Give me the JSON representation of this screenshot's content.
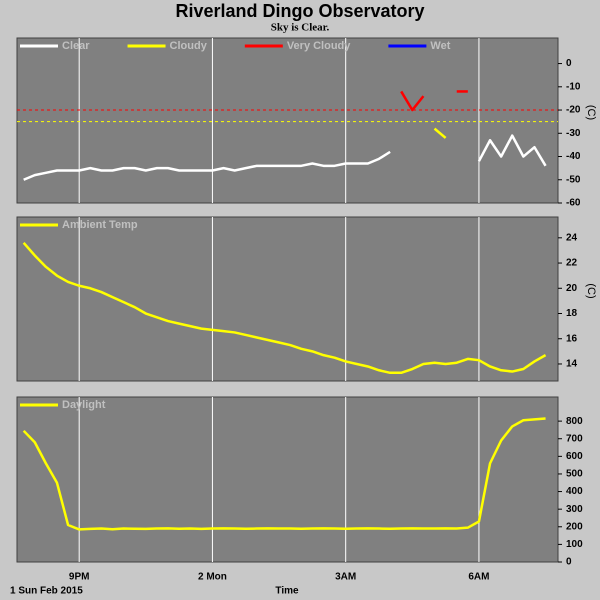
{
  "title": "Riverland Dingo Observatory",
  "subtitle": "Sky is Clear.",
  "x_axis": {
    "label": "Time",
    "date": "1 Sun Feb 2015",
    "x": [
      19.75,
      20,
      20.25,
      20.5,
      20.75,
      21,
      21.25,
      21.5,
      21.75,
      22,
      22.25,
      22.5,
      22.75,
      23,
      23.25,
      23.5,
      23.75,
      24,
      24.25,
      24.5,
      24.75,
      25,
      25.25,
      25.5,
      25.75,
      26,
      26.25,
      26.5,
      26.75,
      27,
      27.25,
      27.5,
      27.75,
      28,
      28.25,
      28.5,
      28.75,
      29,
      29.25,
      29.5,
      29.75,
      30,
      30.25,
      30.5,
      30.75,
      31,
      31.25,
      31.5
    ],
    "xlim": [
      19.6,
      31.78
    ],
    "xticks": [
      {
        "value": 21,
        "label": "9PM"
      },
      {
        "value": 24,
        "label": "2 Mon"
      },
      {
        "value": 27,
        "label": "3AM"
      },
      {
        "value": 30,
        "label": "6AM"
      }
    ]
  },
  "chart_data": [
    {
      "type": "line",
      "ylabel": "(C)",
      "ylim": [
        -60,
        11
      ],
      "yticks": [
        0,
        -10,
        -20,
        -30,
        -40,
        -50,
        -60
      ],
      "thresholds": [
        {
          "value": -20,
          "color": "#ff0000"
        },
        {
          "value": -25,
          "color": "#ffff00"
        }
      ],
      "series": [
        {
          "name": "Clear",
          "color": "#ffffff",
          "values": [
            -50,
            -48,
            -47,
            -46,
            -46,
            -46,
            -45,
            -46,
            -46,
            -45,
            -45,
            -46,
            -45,
            -45,
            -46,
            -46,
            -46,
            -46,
            -45,
            -46,
            -45,
            -44,
            -44,
            -44,
            -44,
            -44,
            -43,
            -44,
            -44,
            -43,
            -43,
            -43,
            -41,
            -38,
            null,
            null,
            null,
            null,
            null,
            null,
            null,
            -42,
            -33,
            -40,
            -31,
            -40,
            -36,
            -44
          ]
        },
        {
          "name": "Cloudy",
          "color": "#ffff00",
          "values": [
            null,
            null,
            null,
            null,
            null,
            null,
            null,
            null,
            null,
            null,
            null,
            null,
            null,
            null,
            null,
            null,
            null,
            null,
            null,
            null,
            null,
            null,
            null,
            null,
            null,
            null,
            null,
            null,
            null,
            null,
            null,
            null,
            null,
            null,
            null,
            null,
            null,
            -28,
            -32,
            null,
            null,
            null,
            null,
            null,
            null,
            null,
            null,
            null
          ]
        },
        {
          "name": "Very Cloudy",
          "color": "#ff0000",
          "values": [
            null,
            null,
            null,
            null,
            null,
            null,
            null,
            null,
            null,
            null,
            null,
            null,
            null,
            null,
            null,
            null,
            null,
            null,
            null,
            null,
            null,
            null,
            null,
            null,
            null,
            null,
            null,
            null,
            null,
            null,
            null,
            null,
            null,
            null,
            -12,
            -20,
            -14,
            null,
            null,
            -12,
            -12,
            null,
            null,
            null,
            null,
            null,
            null,
            null
          ]
        },
        {
          "name": "Wet",
          "color": "#0000ff",
          "values": [
            null,
            null,
            null,
            null,
            null,
            null,
            null,
            null,
            null,
            null,
            null,
            null,
            null,
            null,
            null,
            null,
            null,
            null,
            null,
            null,
            null,
            null,
            null,
            null,
            null,
            null,
            null,
            null,
            null,
            null,
            null,
            null,
            null,
            null,
            null,
            null,
            null,
            null,
            null,
            null,
            null,
            null,
            null,
            null,
            null,
            null,
            null,
            null
          ]
        }
      ]
    },
    {
      "type": "line",
      "ylabel": "(C)",
      "ylim": [
        12.65,
        25.65
      ],
      "yticks": [
        14,
        16,
        18,
        20,
        22,
        24
      ],
      "series": [
        {
          "name": "Ambient Temp",
          "color": "#ffff00",
          "values": [
            23.6,
            22.6,
            21.7,
            21.0,
            20.5,
            20.2,
            20.0,
            19.7,
            19.3,
            18.9,
            18.5,
            18.0,
            17.7,
            17.4,
            17.2,
            17.0,
            16.8,
            16.7,
            16.6,
            16.5,
            16.3,
            16.1,
            15.9,
            15.7,
            15.5,
            15.2,
            15.0,
            14.7,
            14.5,
            14.2,
            14.0,
            13.8,
            13.5,
            13.3,
            13.3,
            13.6,
            14.0,
            14.1,
            14.0,
            14.1,
            14.4,
            14.3,
            13.8,
            13.5,
            13.4,
            13.6,
            14.2,
            14.7
          ]
        }
      ]
    },
    {
      "type": "line",
      "ylim": [
        0,
        937
      ],
      "yticks": [
        0,
        100,
        200,
        300,
        400,
        500,
        600,
        700,
        800
      ],
      "series": [
        {
          "name": "Daylight",
          "color": "#ffff00",
          "values": [
            745,
            680,
            560,
            450,
            210,
            185,
            188,
            190,
            186,
            190,
            189,
            188,
            190,
            191,
            189,
            190,
            188,
            190,
            191,
            190,
            189,
            190,
            191,
            190,
            190,
            189,
            190,
            191,
            190,
            189,
            190,
            191,
            190,
            189,
            190,
            191,
            190,
            190,
            191,
            190,
            195,
            230,
            560,
            690,
            770,
            805,
            810,
            815
          ]
        }
      ]
    }
  ]
}
